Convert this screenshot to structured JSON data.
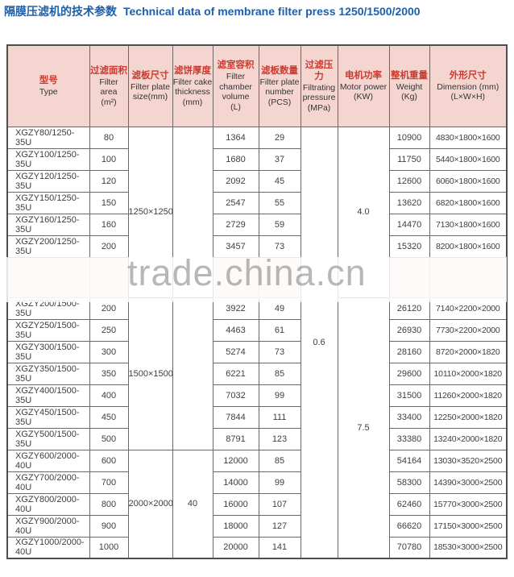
{
  "title": {
    "zh": "隔膜压滤机的技术参数",
    "en": "Technical data of membrane filter press 1250/1500/2000"
  },
  "watermark": "trade.china.cn",
  "colors": {
    "title_blue": "#1e5fa8",
    "header_bg_pink": "#f5d5d0",
    "header_zh_red": "#cc3a2f",
    "border_gray": "#686868",
    "watermark_gray": "#a9a9a9"
  },
  "table": {
    "columns": [
      {
        "key": "type",
        "zh": "型号",
        "en": "Type"
      },
      {
        "key": "area",
        "zh": "过滤面积",
        "en": "Filter area\n(m²)"
      },
      {
        "key": "plate_size",
        "zh": "滤板尺寸",
        "en": "Filter plate\nsize(mm)"
      },
      {
        "key": "thickness",
        "zh": "滤饼厚度",
        "en": "Filter cake\nthickness\n(mm)"
      },
      {
        "key": "volume",
        "zh": "滤室容积",
        "en": "Filter\nchamber\nvolume\n(L)"
      },
      {
        "key": "pcs",
        "zh": "滤板数量",
        "en": "Filter plate\nnumber\n(PCS)"
      },
      {
        "key": "pressure",
        "zh": "过滤压力",
        "en": "Filtrating\npressure\n(MPa)"
      },
      {
        "key": "motor",
        "zh": "电机功率",
        "en": "Motor power\n(KW)"
      },
      {
        "key": "weight",
        "zh": "整机重量",
        "en": "Weight\n(Kg)"
      },
      {
        "key": "dimension",
        "zh": "外形尺寸",
        "en": "Dimension (mm)\n(L×W×H)"
      }
    ],
    "merged_cells": {
      "filter_plate_size": [
        {
          "rows": "1-6",
          "value": "1250×1250"
        },
        {
          "rows": "7-13",
          "value": "1500×1500"
        },
        {
          "rows": "14-18",
          "value": "2000×2000"
        }
      ],
      "filter_cake_thickness": [
        {
          "rows": "1-6",
          "value": ""
        },
        {
          "rows": "7-13",
          "value": ""
        },
        {
          "rows": "14-18",
          "value": "40"
        }
      ],
      "filtrating_pressure": [
        {
          "rows": "1-18",
          "value": "0.6"
        }
      ],
      "motor_power": [
        {
          "rows": "1-6",
          "value": "4.0"
        },
        {
          "rows": "7-18",
          "value": "7.5"
        }
      ]
    },
    "rows": [
      {
        "type": "XGZY80/1250-35U",
        "area": "80",
        "volume": "1364",
        "pcs": "29",
        "weight": "10900",
        "dimension": "4830×1800×1600"
      },
      {
        "type": "XGZY100/1250-35U",
        "area": "100",
        "volume": "1680",
        "pcs": "37",
        "weight": "11750",
        "dimension": "5440×1800×1600"
      },
      {
        "type": "XGZY120/1250-35U",
        "area": "120",
        "volume": "2092",
        "pcs": "45",
        "weight": "12600",
        "dimension": "6060×1800×1600"
      },
      {
        "type": "XGZY150/1250-35U",
        "area": "150",
        "volume": "2547",
        "pcs": "55",
        "weight": "13620",
        "dimension": "6820×1800×1600"
      },
      {
        "type": "XGZY160/1250-35U",
        "area": "160",
        "volume": "2729",
        "pcs": "59",
        "weight": "14470",
        "dimension": "7130×1800×1600"
      },
      {
        "type": "XGZY200/1250-35U",
        "area": "200",
        "volume": "3457",
        "pcs": "73",
        "weight": "15320",
        "dimension": "8200×1800×1600"
      },
      {
        "type": "XGZY200/1500-35U",
        "area": "200",
        "volume": "3922",
        "pcs": "49",
        "weight": "26120",
        "dimension": "7140×2200×2000"
      },
      {
        "type": "XGZY250/1500-35U",
        "area": "250",
        "volume": "4463",
        "pcs": "61",
        "weight": "26930",
        "dimension": "7730×2200×2000"
      },
      {
        "type": "XGZY300/1500-35U",
        "area": "300",
        "volume": "5274",
        "pcs": "73",
        "weight": "28160",
        "dimension": "8720×2000×1820"
      },
      {
        "type": "XGZY350/1500-35U",
        "area": "350",
        "volume": "6221",
        "pcs": "85",
        "weight": "29600",
        "dimension": "10110×2000×1820"
      },
      {
        "type": "XGZY400/1500-35U",
        "area": "400",
        "volume": "7032",
        "pcs": "99",
        "weight": "31500",
        "dimension": "11260×2000×1820"
      },
      {
        "type": "XGZY450/1500-35U",
        "area": "450",
        "volume": "7844",
        "pcs": "111",
        "weight": "33400",
        "dimension": "12250×2000×1820"
      },
      {
        "type": "XGZY500/1500-35U",
        "area": "500",
        "volume": "8791",
        "pcs": "123",
        "weight": "33380",
        "dimension": "13240×2000×1820"
      },
      {
        "type": "XGZY600/2000-40U",
        "area": "600",
        "volume": "12000",
        "pcs": "85",
        "weight": "54164",
        "dimension": "13030×3520×2500"
      },
      {
        "type": "XGZY700/2000-40U",
        "area": "700",
        "volume": "14000",
        "pcs": "99",
        "weight": "58300",
        "dimension": "14390×3000×2500"
      },
      {
        "type": "XGZY800/2000-40U",
        "area": "800",
        "volume": "16000",
        "pcs": "107",
        "weight": "62460",
        "dimension": "15770×3000×2500"
      },
      {
        "type": "XGZY900/2000-40U",
        "area": "900",
        "volume": "18000",
        "pcs": "127",
        "weight": "66620",
        "dimension": "17150×3000×2500"
      },
      {
        "type": "XGZY1000/2000-40U",
        "area": "1000",
        "volume": "20000",
        "pcs": "141",
        "weight": "70780",
        "dimension": "18530×3000×2500"
      }
    ]
  }
}
